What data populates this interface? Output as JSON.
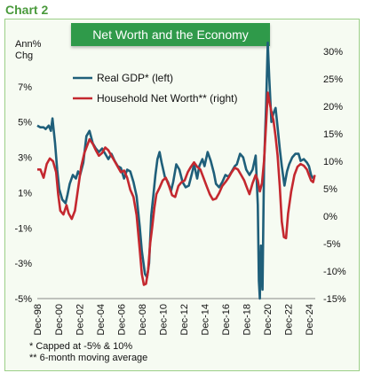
{
  "header": {
    "label": "Chart 2"
  },
  "chart_data": {
    "type": "line",
    "title": "Net Worth and the Economy",
    "left_axis_unit": "Ann%\nChg",
    "y_left": {
      "ticks": [
        "7%",
        "5%",
        "3%",
        "1%",
        "-1%",
        "-3%",
        "-5%"
      ],
      "ylim": [
        -5,
        9
      ]
    },
    "y_right": {
      "ticks": [
        "30%",
        "25%",
        "20%",
        "15%",
        "10%",
        "5%",
        "0%",
        "-5%",
        "-10%",
        "-15%"
      ],
      "ylim": [
        -15,
        30
      ]
    },
    "x_ticks": [
      "Dec-98",
      "Dec-00",
      "Dec-02",
      "Dec-04",
      "Dec-06",
      "Dec-08",
      "Dec-10",
      "Dec-12",
      "Dec-14",
      "Dec-16",
      "Dec-18",
      "Dec-20",
      "Dec-22",
      "Dec-24"
    ],
    "x_range": [
      1998.9,
      2025.5
    ],
    "legend_position": "top-left",
    "grid": false,
    "series": [
      {
        "name": "Real GDP* (left)",
        "axis": "left",
        "color": "#1f5f7a",
        "points": [
          [
            1998.9,
            4.8
          ],
          [
            1999.2,
            4.7
          ],
          [
            1999.5,
            4.7
          ],
          [
            1999.7,
            4.6
          ],
          [
            2000.0,
            4.8
          ],
          [
            2000.2,
            4.5
          ],
          [
            2000.35,
            5.2
          ],
          [
            2000.6,
            3.8
          ],
          [
            2000.8,
            2.3
          ],
          [
            2001.0,
            1.2
          ],
          [
            2001.3,
            0.6
          ],
          [
            2001.6,
            0.4
          ],
          [
            2001.8,
            0.9
          ],
          [
            2002.0,
            1.5
          ],
          [
            2002.3,
            2.0
          ],
          [
            2002.6,
            1.8
          ],
          [
            2002.8,
            2.2
          ],
          [
            2003.0,
            2.0
          ],
          [
            2003.3,
            2.7
          ],
          [
            2003.6,
            4.2
          ],
          [
            2003.9,
            4.5
          ],
          [
            2004.2,
            3.8
          ],
          [
            2004.5,
            3.5
          ],
          [
            2004.8,
            3.3
          ],
          [
            2005.1,
            3.5
          ],
          [
            2005.4,
            3.2
          ],
          [
            2005.7,
            2.9
          ],
          [
            2006.0,
            3.2
          ],
          [
            2006.3,
            2.8
          ],
          [
            2006.6,
            2.5
          ],
          [
            2006.9,
            2.4
          ],
          [
            2007.2,
            1.8
          ],
          [
            2007.5,
            2.3
          ],
          [
            2007.8,
            2.2
          ],
          [
            2008.1,
            1.6
          ],
          [
            2008.4,
            0.8
          ],
          [
            2008.7,
            -0.9
          ],
          [
            2008.9,
            -2.3
          ],
          [
            2009.2,
            -3.6
          ],
          [
            2009.4,
            -3.8
          ],
          [
            2009.6,
            -3.0
          ],
          [
            2009.8,
            -0.3
          ],
          [
            2010.0,
            0.8
          ],
          [
            2010.2,
            2.0
          ],
          [
            2010.4,
            2.9
          ],
          [
            2010.6,
            3.3
          ],
          [
            2010.8,
            2.7
          ],
          [
            2011.1,
            1.9
          ],
          [
            2011.4,
            1.6
          ],
          [
            2011.7,
            1.1
          ],
          [
            2011.9,
            1.6
          ],
          [
            2012.2,
            2.6
          ],
          [
            2012.5,
            2.3
          ],
          [
            2012.8,
            1.6
          ],
          [
            2013.1,
            1.3
          ],
          [
            2013.4,
            1.4
          ],
          [
            2013.7,
            2.1
          ],
          [
            2013.9,
            2.6
          ],
          [
            2014.2,
            1.8
          ],
          [
            2014.4,
            2.5
          ],
          [
            2014.7,
            2.9
          ],
          [
            2014.9,
            2.5
          ],
          [
            2015.2,
            3.3
          ],
          [
            2015.5,
            2.8
          ],
          [
            2015.8,
            2.1
          ],
          [
            2016.0,
            1.5
          ],
          [
            2016.3,
            1.3
          ],
          [
            2016.6,
            1.6
          ],
          [
            2016.9,
            2.0
          ],
          [
            2017.2,
            1.9
          ],
          [
            2017.5,
            2.2
          ],
          [
            2017.8,
            2.5
          ],
          [
            2018.0,
            2.6
          ],
          [
            2018.3,
            3.2
          ],
          [
            2018.6,
            3.0
          ],
          [
            2018.9,
            2.3
          ],
          [
            2019.2,
            2.0
          ],
          [
            2019.5,
            2.3
          ],
          [
            2019.8,
            3.1
          ],
          [
            2020.0,
            0.3
          ],
          [
            2020.1,
            -4.0
          ],
          [
            2020.2,
            -5.0
          ],
          [
            2020.3,
            -2.0
          ],
          [
            2020.45,
            -4.5
          ],
          [
            2020.6,
            2.5
          ],
          [
            2020.8,
            6.0
          ],
          [
            2020.95,
            9.5
          ],
          [
            2021.1,
            7.5
          ],
          [
            2021.3,
            5.0
          ],
          [
            2021.5,
            5.5
          ],
          [
            2021.7,
            5.8
          ],
          [
            2021.9,
            4.7
          ],
          [
            2022.1,
            3.5
          ],
          [
            2022.3,
            2.5
          ],
          [
            2022.55,
            1.4
          ],
          [
            2022.8,
            2.2
          ],
          [
            2023.0,
            2.6
          ],
          [
            2023.3,
            3.0
          ],
          [
            2023.6,
            3.2
          ],
          [
            2023.9,
            3.2
          ],
          [
            2024.1,
            2.8
          ],
          [
            2024.4,
            2.9
          ],
          [
            2024.7,
            2.7
          ],
          [
            2024.9,
            2.5
          ],
          [
            2025.1,
            2.0
          ],
          [
            2025.3,
            1.8
          ]
        ]
      },
      {
        "name": "Household Net Worth** (right)",
        "axis": "right",
        "color": "#c4282f",
        "points": [
          [
            1998.9,
            8.5
          ],
          [
            1999.2,
            8.5
          ],
          [
            1999.5,
            7.0
          ],
          [
            1999.8,
            9.5
          ],
          [
            2000.1,
            10.5
          ],
          [
            2000.4,
            10.0
          ],
          [
            2000.7,
            8.0
          ],
          [
            2000.9,
            4.0
          ],
          [
            2001.1,
            1.0
          ],
          [
            2001.4,
            0.3
          ],
          [
            2001.7,
            2.0
          ],
          [
            2001.9,
            0.5
          ],
          [
            2002.2,
            -0.5
          ],
          [
            2002.5,
            1.0
          ],
          [
            2002.8,
            5.0
          ],
          [
            2003.1,
            9.0
          ],
          [
            2003.4,
            11.5
          ],
          [
            2003.7,
            13.0
          ],
          [
            2003.9,
            14.0
          ],
          [
            2004.2,
            13.2
          ],
          [
            2004.5,
            12.0
          ],
          [
            2004.8,
            11.0
          ],
          [
            2005.1,
            11.5
          ],
          [
            2005.4,
            12.5
          ],
          [
            2005.7,
            12.0
          ],
          [
            2006.0,
            11.0
          ],
          [
            2006.3,
            10.0
          ],
          [
            2006.6,
            9.0
          ],
          [
            2006.9,
            8.0
          ],
          [
            2007.2,
            8.3
          ],
          [
            2007.5,
            7.0
          ],
          [
            2007.8,
            4.8
          ],
          [
            2008.1,
            3.5
          ],
          [
            2008.4,
            0.2
          ],
          [
            2008.7,
            -6.0
          ],
          [
            2008.9,
            -10.5
          ],
          [
            2009.1,
            -12.5
          ],
          [
            2009.3,
            -12.3
          ],
          [
            2009.5,
            -10.0
          ],
          [
            2009.7,
            -5.0
          ],
          [
            2009.9,
            -2.0
          ],
          [
            2010.1,
            1.5
          ],
          [
            2010.3,
            4.0
          ],
          [
            2010.6,
            5.2
          ],
          [
            2010.9,
            6.5
          ],
          [
            2011.2,
            7.0
          ],
          [
            2011.5,
            5.5
          ],
          [
            2011.8,
            3.8
          ],
          [
            2012.1,
            3.5
          ],
          [
            2012.4,
            5.5
          ],
          [
            2012.7,
            6.2
          ],
          [
            2013.0,
            6.5
          ],
          [
            2013.3,
            8.0
          ],
          [
            2013.6,
            9.0
          ],
          [
            2013.9,
            9.8
          ],
          [
            2014.2,
            9.0
          ],
          [
            2014.5,
            8.5
          ],
          [
            2014.8,
            7.0
          ],
          [
            2015.1,
            5.5
          ],
          [
            2015.4,
            4.0
          ],
          [
            2015.7,
            3.0
          ],
          [
            2016.0,
            3.2
          ],
          [
            2016.3,
            4.2
          ],
          [
            2016.6,
            5.5
          ],
          [
            2016.9,
            6.2
          ],
          [
            2017.2,
            7.0
          ],
          [
            2017.5,
            8.0
          ],
          [
            2017.8,
            8.8
          ],
          [
            2018.1,
            8.5
          ],
          [
            2018.4,
            7.5
          ],
          [
            2018.7,
            6.5
          ],
          [
            2018.9,
            5.5
          ],
          [
            2019.2,
            4.0
          ],
          [
            2019.5,
            6.0
          ],
          [
            2019.8,
            7.5
          ],
          [
            2020.0,
            6.5
          ],
          [
            2020.2,
            4.5
          ],
          [
            2020.4,
            6.0
          ],
          [
            2020.6,
            10.0
          ],
          [
            2020.8,
            17.0
          ],
          [
            2020.95,
            22.5
          ],
          [
            2021.1,
            21.0
          ],
          [
            2021.3,
            19.0
          ],
          [
            2021.5,
            17.5
          ],
          [
            2021.7,
            14.5
          ],
          [
            2021.9,
            11.0
          ],
          [
            2022.1,
            5.5
          ],
          [
            2022.3,
            -1.0
          ],
          [
            2022.5,
            -3.8
          ],
          [
            2022.7,
            -4.0
          ],
          [
            2022.9,
            0.5
          ],
          [
            2023.2,
            4.5
          ],
          [
            2023.5,
            7.5
          ],
          [
            2023.8,
            9.0
          ],
          [
            2024.1,
            9.5
          ],
          [
            2024.4,
            9.2
          ],
          [
            2024.7,
            8.5
          ],
          [
            2024.9,
            7.5
          ],
          [
            2025.1,
            6.5
          ],
          [
            2025.3,
            6.2
          ],
          [
            2025.45,
            7.5
          ]
        ]
      }
    ],
    "footnotes": [
      "*  Capped at -5% & 10%",
      "** 6-month moving average"
    ]
  }
}
